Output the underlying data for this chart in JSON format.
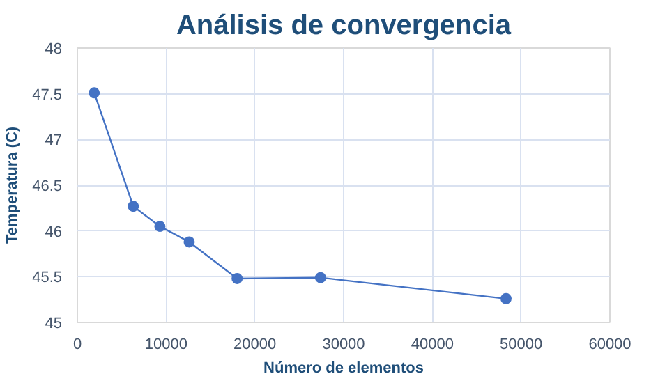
{
  "chart_data": {
    "type": "line",
    "title": "Análisis de convergencia",
    "xlabel": "Número de elementos",
    "ylabel": "Temperatura (C)",
    "x": [
      1900,
      6300,
      9300,
      12600,
      18000,
      27400,
      48300
    ],
    "series": [
      {
        "color": "#4472c4",
        "values": [
          47.51,
          46.27,
          46.05,
          45.88,
          45.48,
          45.49,
          45.26
        ]
      }
    ],
    "xlim": [
      0,
      60000
    ],
    "xticks": [
      0,
      10000,
      20000,
      30000,
      40000,
      50000,
      60000
    ],
    "ylim": [
      45,
      48
    ],
    "yticks": [
      45,
      45.5,
      46,
      46.5,
      47,
      47.5,
      48
    ],
    "grid": true,
    "marker": "circle",
    "line_style": "solid"
  }
}
